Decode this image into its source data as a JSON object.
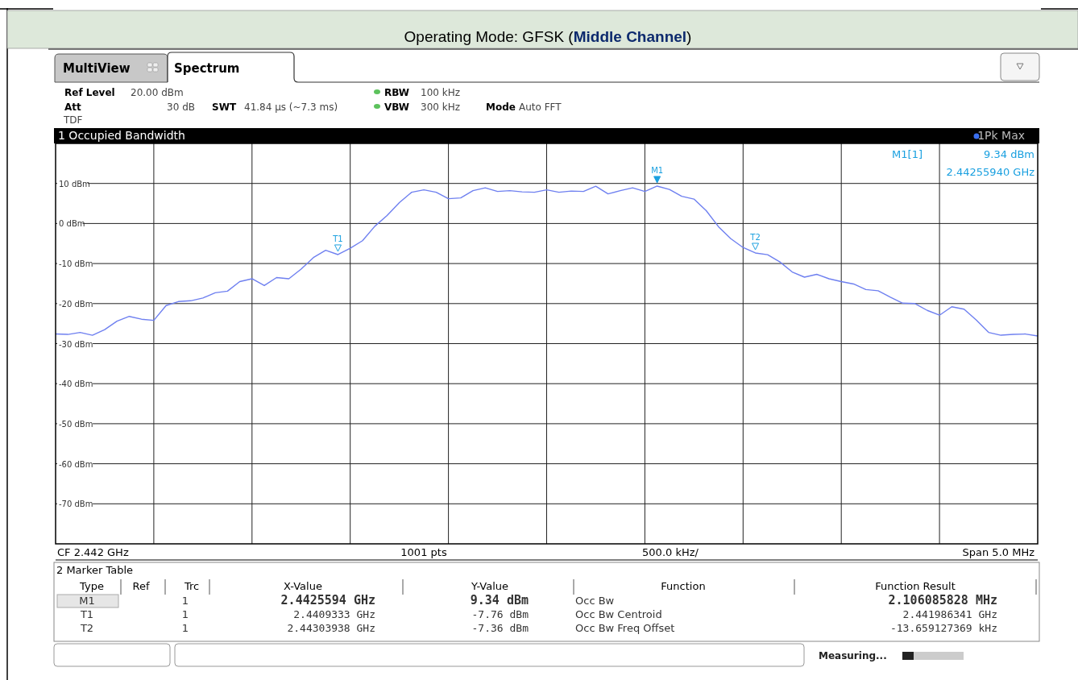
{
  "chart_data": {
    "type": "line",
    "title": "Operating Mode: GFSK (Middle Channel)",
    "categories": [
      null,
      null,
      null,
      null,
      null,
      null,
      null,
      null,
      null,
      null,
      null,
      null,
      null,
      null,
      null,
      null,
      null,
      null,
      null,
      null,
      null,
      null,
      null,
      null,
      null,
      null,
      null,
      null,
      null,
      null,
      null,
      null,
      null,
      null,
      null,
      null,
      null,
      null,
      null,
      null,
      null,
      null,
      null,
      null,
      null,
      null,
      null,
      null,
      null,
      null,
      null,
      null,
      null,
      null,
      null,
      null,
      null,
      null,
      null,
      null,
      null,
      null,
      null,
      null,
      null,
      null,
      null,
      null,
      null,
      null,
      null,
      null,
      null,
      null,
      null,
      null,
      null,
      null,
      null,
      null,
      null
    ],
    "series": [
      {
        "color": "#6f80f0",
        "values": [
          -27.6,
          -27.7,
          -27.2,
          -27.9,
          -26.5,
          -24.4,
          -23.2,
          -23.9,
          -24.2,
          -20.5,
          -19.5,
          -19.3,
          -18.6,
          -17.3,
          -16.9,
          -14.5,
          -13.8,
          -15.5,
          -13.5,
          -13.8,
          -11.4,
          -8.5,
          -6.7,
          -7.76,
          -6.2,
          -4.3,
          -0.7,
          2.0,
          5.2,
          7.8,
          8.4,
          7.8,
          6.2,
          6.4,
          8.2,
          8.9,
          8.0,
          8.2,
          7.9,
          7.8,
          8.4,
          7.8,
          8.1,
          8.0,
          9.3,
          7.4,
          8.2,
          8.9,
          8.0,
          9.34,
          8.5,
          6.8,
          6.1,
          3.2,
          -0.8,
          -3.8,
          -6.0,
          -7.36,
          -7.8,
          -9.6,
          -12.1,
          -13.4,
          -12.7,
          -13.8,
          -14.5,
          -15.1,
          -16.5,
          -16.8,
          -18.4,
          -19.9,
          -20.0,
          -21.7,
          -22.9,
          -20.8,
          -21.4,
          -24.1,
          -27.2,
          -27.9,
          -27.7,
          -27.6,
          -28.1
        ]
      }
    ],
    "ylim": [
      -80,
      20
    ],
    "yticks": [
      {
        "value": 10,
        "label": "10 dBm"
      },
      {
        "value": 0,
        "label": "0 dBm"
      },
      {
        "value": -10,
        "label": "-10 dBm"
      },
      {
        "value": -20,
        "label": "-20 dBm"
      },
      {
        "value": -30,
        "label": "-30 dBm"
      },
      {
        "value": -40,
        "label": "-40 dBm"
      },
      {
        "value": -50,
        "label": "-50 dBm"
      },
      {
        "value": -60,
        "label": "-60 dBm"
      },
      {
        "value": -70,
        "label": "-70 dBm"
      }
    ],
    "grid": true,
    "tick_labels": "y",
    "marker": "none",
    "line_style": "solid",
    "annotations": [
      "MultiView",
      "Spectrum",
      "Ref Level",
      "20.00 dBm",
      "Att",
      "30 dB",
      "TDF",
      "SWT",
      "41.84 µs (~7.3 ms)",
      "RBW",
      "100 kHz",
      "VBW",
      "300 kHz",
      "Mode",
      "Auto FFT",
      "1 Occupied Bandwidth",
      "1Pk Max",
      "M1[1]",
      "9.34 dBm",
      "2.44255940 GHz",
      "CF 2.442 GHz",
      "1001 pts",
      "500.0 kHz/",
      "Span 5.0 MHz",
      "2 Marker Table",
      "Type",
      "Ref",
      "Trc",
      "X-Value",
      "Y-Value",
      "Function",
      "Function Result",
      "M1",
      "1",
      "2.4425594 GHz",
      "9.34 dBm",
      "Occ Bw",
      "2.106085828 MHz",
      "T1",
      "1",
      "2.4409333 GHz",
      "-7.76 dBm",
      "Occ Bw Centroid",
      "2.441986341 GHz",
      "T2",
      "1",
      "2.44303938 GHz",
      "-7.36 dBm",
      "Occ Bw Freq Offset",
      "-13.659127369 kHz",
      "Measuring...",
      {
        "text": "M1",
        "y": 9.34
      },
      {
        "text": "T1",
        "y": -7.76
      },
      {
        "text": "T2",
        "y": -7.36
      }
    ]
  }
}
